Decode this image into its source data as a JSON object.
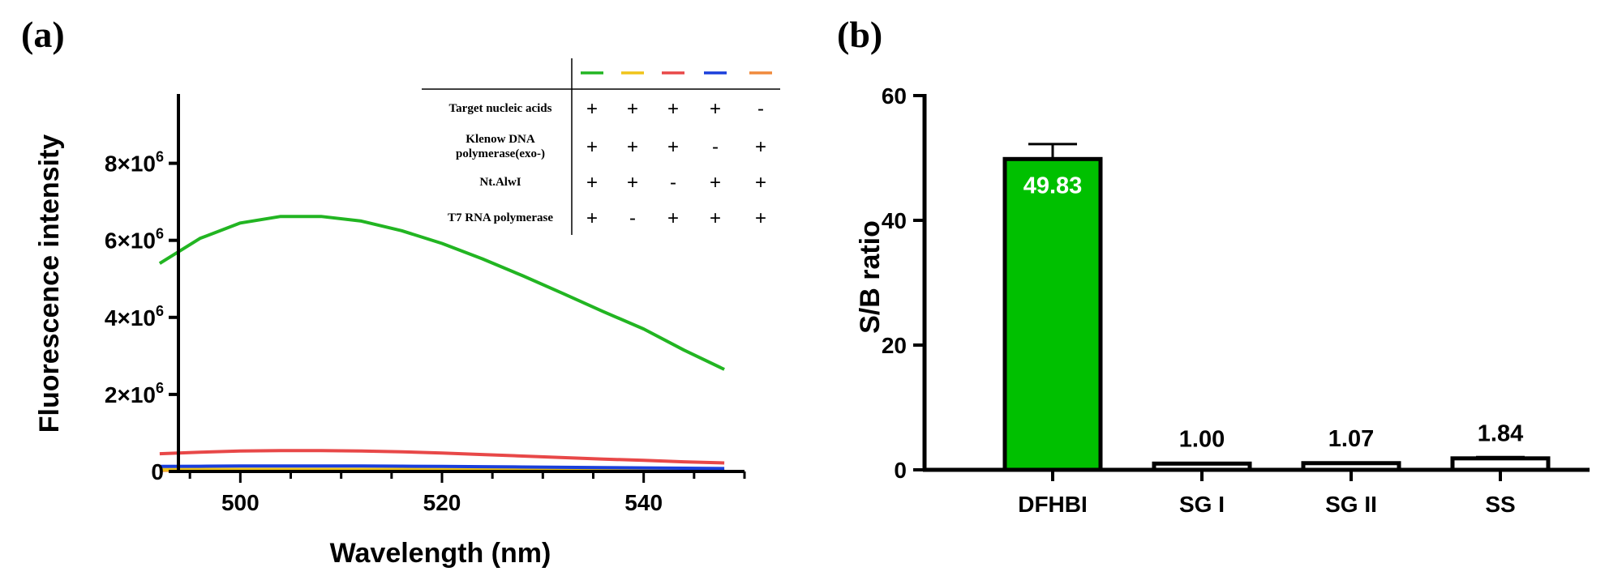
{
  "colors": {
    "green": "#22b522",
    "yellow": "#f0c419",
    "red": "#e84848",
    "blue": "#1a3fdc",
    "orange": "#f08a3c",
    "bar_fill": "#00c000",
    "axis": "#000000"
  },
  "chart_data": [
    {
      "id": "a",
      "panel_label": "(a)",
      "type": "line",
      "xlabel": "Wavelength (nm)",
      "ylabel": "Fluorescence intensity",
      "xlim": [
        490,
        550
      ],
      "ylim": [
        0,
        9800000
      ],
      "x_ticks": [
        500,
        520,
        540
      ],
      "x_tick_labels": [
        "500",
        "520",
        "540"
      ],
      "y_ticks": [
        0,
        2000000,
        4000000,
        6000000,
        8000000
      ],
      "y_tick_labels": [
        {
          "base": "0",
          "exp": ""
        },
        {
          "base": "2×10",
          "exp": "6"
        },
        {
          "base": "4×10",
          "exp": "6"
        },
        {
          "base": "6×10",
          "exp": "6"
        },
        {
          "base": "8×10",
          "exp": "6"
        }
      ],
      "x": [
        492,
        496,
        500,
        504,
        508,
        512,
        516,
        520,
        524,
        528,
        532,
        536,
        540,
        544,
        548
      ],
      "series": [
        {
          "name": "green",
          "color": "#22b522",
          "values": [
            5400000,
            6050000,
            6450000,
            6620000,
            6620000,
            6500000,
            6250000,
            5920000,
            5520000,
            5080000,
            4620000,
            4150000,
            3700000,
            3150000,
            2650000
          ]
        },
        {
          "name": "yellow",
          "color": "#f0c419",
          "values": [
            50000,
            52000,
            54000,
            55000,
            55000,
            54000,
            53000,
            51000,
            49000,
            47000,
            45000,
            42000,
            39000,
            36000,
            33000
          ]
        },
        {
          "name": "red",
          "color": "#e84848",
          "values": [
            460000,
            500000,
            530000,
            540000,
            540000,
            530000,
            510000,
            480000,
            440000,
            400000,
            360000,
            320000,
            290000,
            250000,
            220000
          ]
        },
        {
          "name": "blue",
          "color": "#1a3fdc",
          "values": [
            130000,
            135000,
            140000,
            142000,
            142000,
            140000,
            136000,
            130000,
            124000,
            116000,
            108000,
            100000,
            92000,
            84000,
            76000
          ]
        },
        {
          "name": "orange",
          "color": "#f08a3c",
          "values": [
            30000,
            31000,
            32000,
            33000,
            33000,
            32000,
            31000,
            30000,
            29000,
            28000,
            27000,
            26000,
            25000,
            24000,
            23000
          ]
        }
      ],
      "legend_table": {
        "rows": [
          {
            "label_lines": [
              "Target nucleic acids"
            ],
            "marks": [
              "+",
              "+",
              "+",
              "+",
              "-"
            ]
          },
          {
            "label_lines": [
              "Klenow DNA",
              "polymerase(exo-)"
            ],
            "marks": [
              "+",
              "+",
              "+",
              "-",
              "+"
            ]
          },
          {
            "label_lines": [
              "Nt.AlwI"
            ],
            "marks": [
              "+",
              "+",
              "-",
              "+",
              "+"
            ]
          },
          {
            "label_lines": [
              "T7 RNA polymerase"
            ],
            "marks": [
              "+",
              "-",
              "+",
              "+",
              "+"
            ]
          }
        ]
      }
    },
    {
      "id": "b",
      "panel_label": "(b)",
      "type": "bar",
      "xlabel": "",
      "ylabel": "S/B ratio",
      "ylim": [
        0,
        60
      ],
      "y_ticks": [
        0,
        20,
        40,
        60
      ],
      "y_tick_labels": [
        "0",
        "20",
        "40",
        "60"
      ],
      "categories": [
        "DFHBI",
        "SG I",
        "SG II",
        "SS"
      ],
      "values": [
        49.83,
        1.0,
        1.07,
        1.84
      ],
      "value_labels": [
        "49.83",
        "1.00",
        "1.07",
        "1.84"
      ],
      "errors": [
        2.4,
        0.08,
        0.09,
        0.2
      ],
      "bar_colors": [
        "#00c000",
        "#ffffff",
        "#ffffff",
        "#ffffff"
      ]
    }
  ]
}
